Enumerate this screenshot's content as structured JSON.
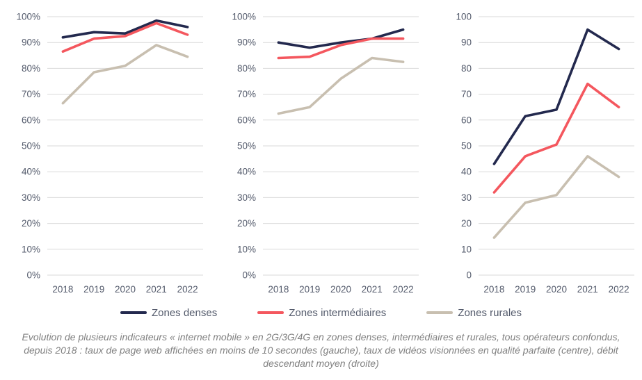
{
  "colors": {
    "grid": "#d9d9d9",
    "axis_label": "#535a6b",
    "caption": "#808080",
    "dense": "#23294e",
    "intermediaire": "#f4575e",
    "rurale": "#c8bfb0"
  },
  "legend": {
    "items": [
      {
        "label": "Zones denses",
        "color": "#23294e"
      },
      {
        "label": "Zones intermédiaires",
        "color": "#f4575e"
      },
      {
        "label": "Zones rurales",
        "color": "#c8bfb0"
      }
    ]
  },
  "caption": {
    "text": "Evolution de plusieurs indicateurs « internet mobile » en 2G/3G/4G en zones denses, intermédiaires et rurales, tous opérateurs confondus, depuis 2018 : taux de page web affichées en moins de 10 secondes (gauche), taux de vidéos visionnées en qualité parfaite (centre), débit descendant moyen (droite)"
  },
  "chart_data": [
    {
      "type": "line",
      "title": "Taux de page web affichées en moins de 10 secondes (gauche)",
      "categories": [
        "2018",
        "2019",
        "2020",
        "2021",
        "2022"
      ],
      "y_format": "percent",
      "ylim": [
        0,
        100
      ],
      "ytick_step": 10,
      "grid": true,
      "legend_position": "bottom-shared",
      "series": [
        {
          "name": "Zones denses",
          "color": "#23294e",
          "values": [
            92,
            94,
            93.5,
            98.5,
            96
          ]
        },
        {
          "name": "Zones intermédiaires",
          "color": "#f4575e",
          "values": [
            86.5,
            91.5,
            92.5,
            97.5,
            93
          ]
        },
        {
          "name": "Zones rurales",
          "color": "#c8bfb0",
          "values": [
            66.5,
            78.5,
            81,
            89,
            84.5
          ]
        }
      ]
    },
    {
      "type": "line",
      "title": "Taux de vidéos visionnées en qualité parfaite (centre)",
      "categories": [
        "2018",
        "2019",
        "2020",
        "2021",
        "2022"
      ],
      "y_format": "percent",
      "ylim": [
        0,
        100
      ],
      "ytick_step": 10,
      "grid": true,
      "legend_position": "bottom-shared",
      "series": [
        {
          "name": "Zones denses",
          "color": "#23294e",
          "values": [
            90,
            88,
            90,
            91.5,
            95
          ]
        },
        {
          "name": "Zones intermédiaires",
          "color": "#f4575e",
          "values": [
            84,
            84.5,
            89,
            91.5,
            91.5
          ]
        },
        {
          "name": "Zones rurales",
          "color": "#c8bfb0",
          "values": [
            62.5,
            65,
            76,
            84,
            82.5
          ]
        }
      ]
    },
    {
      "type": "line",
      "title": "Débit descendant moyen (droite)",
      "categories": [
        "2018",
        "2019",
        "2020",
        "2021",
        "2022"
      ],
      "y_format": "number",
      "ylim": [
        0,
        100
      ],
      "ytick_step": 10,
      "grid": true,
      "legend_position": "bottom-shared",
      "series": [
        {
          "name": "Zones denses",
          "color": "#23294e",
          "values": [
            43,
            61.5,
            64,
            95,
            87.5
          ]
        },
        {
          "name": "Zones intermédiaires",
          "color": "#f4575e",
          "values": [
            32,
            46,
            50.5,
            74,
            65
          ]
        },
        {
          "name": "Zones rurales",
          "color": "#c8bfb0",
          "values": [
            14.5,
            28,
            31,
            46,
            38
          ]
        }
      ]
    }
  ]
}
